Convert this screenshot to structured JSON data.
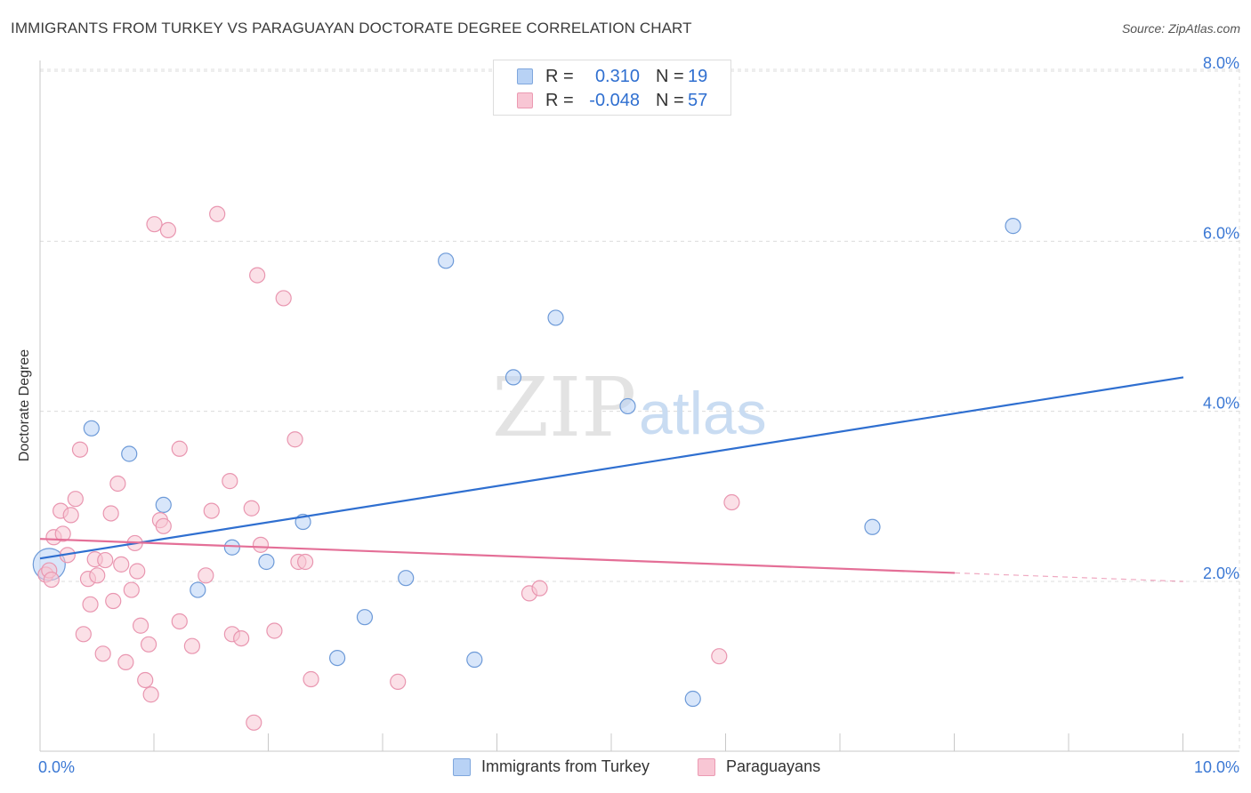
{
  "title": "IMMIGRANTS FROM TURKEY VS PARAGUAYAN DOCTORATE DEGREE CORRELATION CHART",
  "source": "Source: ZipAtlas.com",
  "watermark": {
    "zip": "ZIP",
    "atlas": "atlas"
  },
  "legend_top": [
    {
      "r_label": "R =",
      "r_value": "0.310",
      "n_label": "N =",
      "n_value": "19"
    },
    {
      "r_label": "R =",
      "r_value": "-0.048",
      "n_label": "N =",
      "n_value": "57"
    }
  ],
  "colors": {
    "blue_fill": "#b8d2f5",
    "blue_stroke": "#6d9ad8",
    "blue_line": "#2f6fd0",
    "pink_fill": "#f8c6d4",
    "pink_stroke": "#e996b0",
    "pink_line": "#e46f97",
    "grid": "#dcdcdc",
    "tick_text": "#3b78d4"
  },
  "chart_data": {
    "type": "scatter",
    "title": "IMMIGRANTS FROM TURKEY VS PARAGUAYAN DOCTORATE DEGREE CORRELATION CHART",
    "xlabel": "",
    "ylabel": "Doctorate Degree",
    "xlim": [
      0,
      10
    ],
    "ylim": [
      0,
      8.2
    ],
    "x_tick_labels": [
      {
        "value": 0,
        "label": "0.0%"
      },
      {
        "value": 10,
        "label": "10.0%"
      }
    ],
    "x_minor_ticks": [
      1,
      2,
      3,
      4,
      5,
      6,
      7,
      8,
      9,
      10
    ],
    "y_ticks": [
      {
        "value": 2,
        "label": "2.0%"
      },
      {
        "value": 4,
        "label": "4.0%"
      },
      {
        "value": 6,
        "label": "6.0%"
      },
      {
        "value": 8,
        "label": "8.0%"
      }
    ],
    "grid": true,
    "legend_position": "bottom-center",
    "series": [
      {
        "name": "Immigrants from Turkey",
        "color": "blue",
        "r": 0.31,
        "n": 19,
        "trend": {
          "x": [
            0,
            10
          ],
          "y": [
            2.27,
            4.4
          ],
          "solid_until": 10
        },
        "points": [
          {
            "x": 0.08,
            "y": 2.2,
            "size": "large"
          },
          {
            "x": 0.45,
            "y": 3.8
          },
          {
            "x": 0.78,
            "y": 3.5
          },
          {
            "x": 1.08,
            "y": 2.9
          },
          {
            "x": 1.38,
            "y": 1.9
          },
          {
            "x": 1.68,
            "y": 2.4
          },
          {
            "x": 1.98,
            "y": 2.23
          },
          {
            "x": 2.3,
            "y": 2.7
          },
          {
            "x": 2.6,
            "y": 1.1
          },
          {
            "x": 2.84,
            "y": 1.58
          },
          {
            "x": 3.2,
            "y": 2.04
          },
          {
            "x": 3.55,
            "y": 5.77
          },
          {
            "x": 3.8,
            "y": 1.08
          },
          {
            "x": 4.14,
            "y": 4.4
          },
          {
            "x": 4.51,
            "y": 5.1
          },
          {
            "x": 5.14,
            "y": 4.06
          },
          {
            "x": 5.71,
            "y": 0.62
          },
          {
            "x": 7.28,
            "y": 2.64
          },
          {
            "x": 8.51,
            "y": 6.18
          }
        ]
      },
      {
        "name": "Paraguayans",
        "color": "pink",
        "r": -0.048,
        "n": 57,
        "trend": {
          "x": [
            0,
            10
          ],
          "y": [
            2.5,
            2.0
          ],
          "solid_until": 8.0
        },
        "points": [
          {
            "x": 0.05,
            "y": 2.08
          },
          {
            "x": 0.08,
            "y": 2.13
          },
          {
            "x": 0.12,
            "y": 2.52
          },
          {
            "x": 0.18,
            "y": 2.83
          },
          {
            "x": 0.2,
            "y": 2.56
          },
          {
            "x": 0.24,
            "y": 2.31
          },
          {
            "x": 0.27,
            "y": 2.78
          },
          {
            "x": 0.31,
            "y": 2.97
          },
          {
            "x": 0.35,
            "y": 3.55
          },
          {
            "x": 0.38,
            "y": 1.38
          },
          {
            "x": 0.42,
            "y": 2.03
          },
          {
            "x": 0.44,
            "y": 1.73
          },
          {
            "x": 0.48,
            "y": 2.26
          },
          {
            "x": 0.5,
            "y": 2.07
          },
          {
            "x": 0.55,
            "y": 1.15
          },
          {
            "x": 0.57,
            "y": 2.25
          },
          {
            "x": 0.62,
            "y": 2.8
          },
          {
            "x": 0.64,
            "y": 1.77
          },
          {
            "x": 0.68,
            "y": 3.15
          },
          {
            "x": 0.71,
            "y": 2.2
          },
          {
            "x": 0.75,
            "y": 1.05
          },
          {
            "x": 0.8,
            "y": 1.9
          },
          {
            "x": 0.83,
            "y": 2.45
          },
          {
            "x": 0.85,
            "y": 2.12
          },
          {
            "x": 0.88,
            "y": 1.48
          },
          {
            "x": 0.92,
            "y": 0.84
          },
          {
            "x": 0.95,
            "y": 1.26
          },
          {
            "x": 0.97,
            "y": 0.67
          },
          {
            "x": 1.0,
            "y": 6.2
          },
          {
            "x": 1.05,
            "y": 2.72
          },
          {
            "x": 1.08,
            "y": 2.65
          },
          {
            "x": 1.12,
            "y": 6.13
          },
          {
            "x": 1.22,
            "y": 3.56
          },
          {
            "x": 1.22,
            "y": 1.53
          },
          {
            "x": 1.33,
            "y": 1.24
          },
          {
            "x": 1.45,
            "y": 2.07
          },
          {
            "x": 1.5,
            "y": 2.83
          },
          {
            "x": 1.55,
            "y": 6.32
          },
          {
            "x": 1.66,
            "y": 3.18
          },
          {
            "x": 1.68,
            "y": 1.38
          },
          {
            "x": 1.76,
            "y": 1.33
          },
          {
            "x": 1.85,
            "y": 2.86
          },
          {
            "x": 1.87,
            "y": 0.34
          },
          {
            "x": 1.9,
            "y": 5.6
          },
          {
            "x": 1.93,
            "y": 2.43
          },
          {
            "x": 2.05,
            "y": 1.42
          },
          {
            "x": 2.13,
            "y": 5.33
          },
          {
            "x": 2.23,
            "y": 3.67
          },
          {
            "x": 2.26,
            "y": 2.23
          },
          {
            "x": 2.32,
            "y": 2.23
          },
          {
            "x": 2.37,
            "y": 0.85
          },
          {
            "x": 3.13,
            "y": 0.82
          },
          {
            "x": 4.28,
            "y": 1.86
          },
          {
            "x": 4.37,
            "y": 1.92
          },
          {
            "x": 5.94,
            "y": 1.12
          },
          {
            "x": 6.05,
            "y": 2.93
          },
          {
            "x": 0.1,
            "y": 2.02
          }
        ]
      }
    ]
  },
  "legend_bottom": [
    {
      "label": "Immigrants from Turkey",
      "color": "blue"
    },
    {
      "label": "Paraguayans",
      "color": "pink"
    }
  ]
}
